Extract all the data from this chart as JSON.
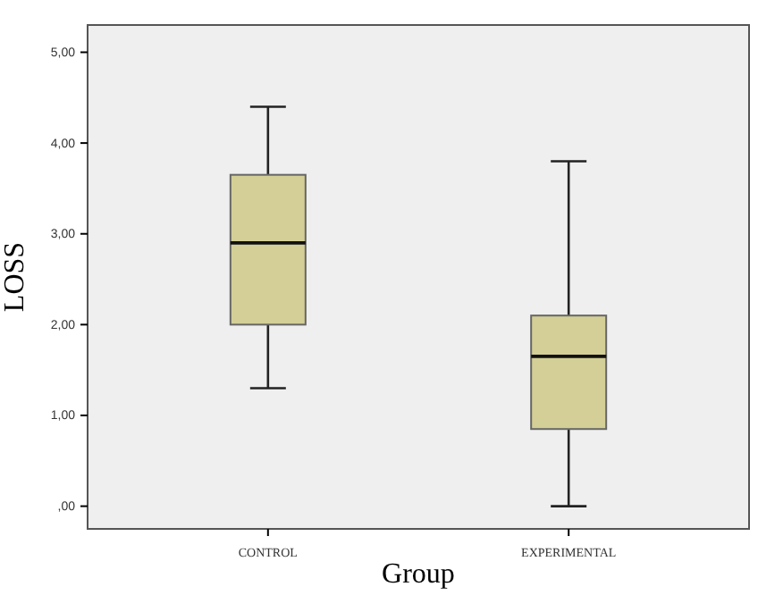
{
  "chart_data": {
    "type": "box",
    "xlabel": "Group",
    "ylabel": "LOSS",
    "categories": [
      "CONTROL",
      "EXPERIMENTAL"
    ],
    "boxes": [
      {
        "low": 1.3,
        "q1": 2.0,
        "median": 2.9,
        "q3": 3.65,
        "high": 4.4
      },
      {
        "low": 0.0,
        "q1": 0.85,
        "median": 1.65,
        "q3": 2.1,
        "high": 3.8
      }
    ],
    "color": "#d3cf96",
    "ylim": [
      -0.25,
      5.3
    ],
    "yticks": [
      {
        "value": 0,
        "label": ",00"
      },
      {
        "value": 1,
        "label": "1,00"
      },
      {
        "value": 2,
        "label": "2,00"
      },
      {
        "value": 3,
        "label": "3,00"
      },
      {
        "value": 4,
        "label": "4,00"
      },
      {
        "value": 5,
        "label": "5,00"
      }
    ],
    "grid": false
  }
}
